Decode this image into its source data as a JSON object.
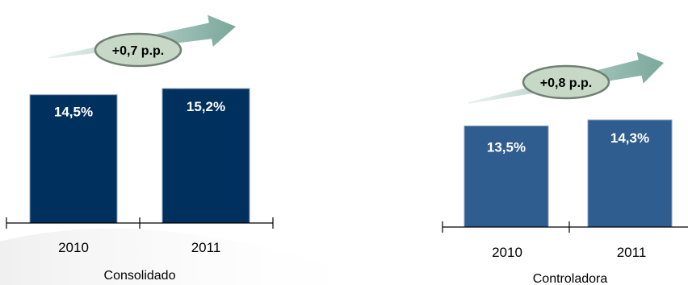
{
  "chart_data": [
    {
      "type": "bar",
      "title": "Consolidado",
      "categories": [
        "2010",
        "2011"
      ],
      "values": [
        14.5,
        15.2
      ],
      "value_labels": [
        "14,5%",
        "15,2%"
      ],
      "delta_label": "+0,7 p.p.",
      "bar_color": "#00305E",
      "ylim": [
        0,
        15.2
      ],
      "grid": false
    },
    {
      "type": "bar",
      "title": "Controladora",
      "categories": [
        "2010",
        "2011"
      ],
      "values": [
        13.5,
        14.3
      ],
      "value_labels": [
        "13,5%",
        "14,3%"
      ],
      "delta_label": "+0,8 p.p.",
      "bar_color": "#2F5D8F",
      "ylim": [
        0,
        14.3
      ],
      "grid": false
    }
  ],
  "colors": {
    "arrow": "#79A89A",
    "bubble_fill": "#C7D8C6",
    "bubble_stroke": "#6F7F73",
    "axis": "#000000"
  }
}
